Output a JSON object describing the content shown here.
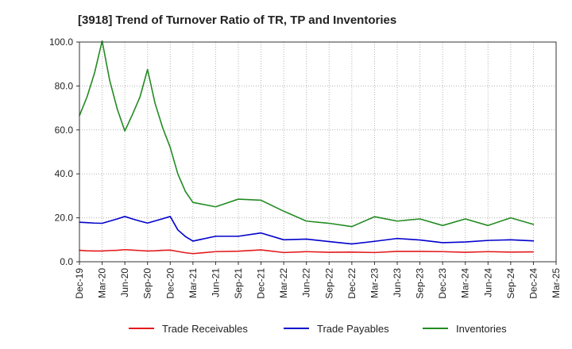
{
  "chart_data": {
    "type": "line",
    "title": "[3918]  Trend of Turnover Ratio of TR, TP and Inventories",
    "xlabel": "",
    "ylabel": "",
    "ylim": [
      0,
      100
    ],
    "yticks": [
      "0.0",
      "20.0",
      "40.0",
      "60.0",
      "80.0",
      "100.0"
    ],
    "ytick_values": [
      0,
      20,
      40,
      60,
      80,
      100
    ],
    "xtick_labels": [
      "Dec-19",
      "Mar-20",
      "Jun-20",
      "Sep-20",
      "Dec-20",
      "Mar-21",
      "Jun-21",
      "Sep-21",
      "Dec-21",
      "Mar-22",
      "Jun-22",
      "Sep-22",
      "Dec-22",
      "Mar-23",
      "Jun-23",
      "Sep-23",
      "Dec-23",
      "Mar-24",
      "Jun-24",
      "Sep-24",
      "Dec-24",
      "Mar-25"
    ],
    "x_months": [
      "Dec-19",
      "Jan-20",
      "Feb-20",
      "Mar-20",
      "Apr-20",
      "May-20",
      "Jun-20",
      "Jul-20",
      "Aug-20",
      "Sep-20",
      "Oct-20",
      "Nov-20",
      "Dec-20",
      "Jan-21",
      "Feb-21",
      "Mar-21",
      "Jun-21",
      "Sep-21",
      "Dec-21",
      "Mar-22",
      "Jun-22",
      "Sep-22",
      "Dec-22",
      "Mar-23",
      "Jun-23",
      "Sep-23",
      "Dec-23",
      "Mar-24",
      "Jun-24",
      "Sep-24",
      "Dec-24"
    ],
    "grid": true,
    "legend_position": "bottom",
    "series": [
      {
        "name": "Trade Receivables",
        "color": "#e31a1c",
        "values": [
          5.2,
          5.0,
          4.9,
          4.9,
          5.1,
          5.2,
          5.5,
          5.3,
          5.1,
          4.9,
          5.0,
          5.2,
          5.3,
          4.7,
          4.1,
          3.7,
          4.6,
          4.8,
          5.4,
          4.2,
          4.6,
          4.3,
          4.4,
          4.2,
          4.7,
          4.7,
          4.6,
          4.3,
          4.6,
          4.4,
          4.5
        ]
      },
      {
        "name": "Trade Payables",
        "color": "#0000cc",
        "values": [
          18.0,
          17.8,
          17.6,
          17.5,
          18.5,
          19.5,
          20.6,
          19.5,
          18.5,
          17.6,
          18.6,
          19.6,
          20.6,
          14.5,
          11.5,
          9.4,
          11.6,
          11.6,
          13.1,
          10.0,
          10.3,
          9.2,
          8.1,
          9.3,
          10.6,
          9.9,
          8.7,
          9.0,
          9.7,
          10.0,
          9.5
        ]
      },
      {
        "name": "Inventories",
        "color": "#228b22",
        "values": [
          66.5,
          75.0,
          86.0,
          100.5,
          82.5,
          69.5,
          59.5,
          67.0,
          75.0,
          87.5,
          72.0,
          61.0,
          52.0,
          40.0,
          32.0,
          27.0,
          25.0,
          28.5,
          28.0,
          23.0,
          18.5,
          17.5,
          16.0,
          20.5,
          18.5,
          19.5,
          16.5,
          19.5,
          16.5,
          20.0,
          17.0
        ]
      }
    ]
  }
}
